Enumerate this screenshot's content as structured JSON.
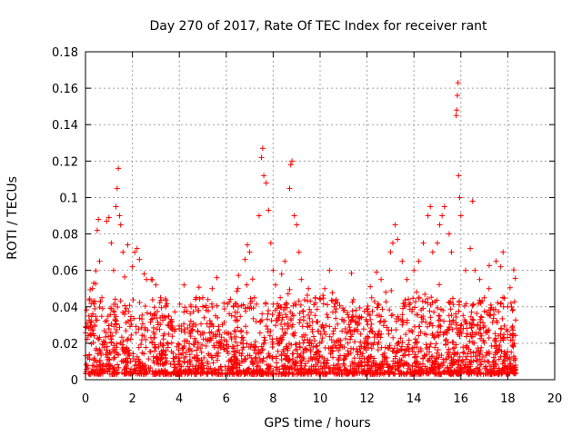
{
  "chart_data": {
    "type": "scatter",
    "title": "Day 270 of 2017, Rate Of TEC Index for receiver rant",
    "xlabel": "GPS time / hours",
    "ylabel": "ROTI / TECUs",
    "xlim": [
      0,
      20
    ],
    "ylim": [
      0,
      0.18
    ],
    "xticks": [
      "0",
      "2",
      "4",
      "6",
      "8",
      "10",
      "12",
      "14",
      "16",
      "18",
      "20"
    ],
    "yticks": [
      "0",
      "0.02",
      "0.04",
      "0.06",
      "0.08",
      "0.1",
      "0.12",
      "0.14",
      "0.16",
      "0.18"
    ],
    "grid": true,
    "marker": "+",
    "color": "#ff0000",
    "series": [
      {
        "points": [
          [
            0.1,
            0.012
          ],
          [
            0.2,
            0.025
          ],
          [
            0.3,
            0.05
          ],
          [
            0.35,
            0.053
          ],
          [
            0.5,
            0.082
          ],
          [
            0.55,
            0.088
          ],
          [
            0.6,
            0.065
          ],
          [
            0.7,
            0.045
          ],
          [
            0.9,
            0.087
          ],
          [
            1.0,
            0.089
          ],
          [
            1.1,
            0.075
          ],
          [
            1.2,
            0.06
          ],
          [
            1.3,
            0.095
          ],
          [
            1.35,
            0.105
          ],
          [
            1.4,
            0.116
          ],
          [
            1.45,
            0.09
          ],
          [
            1.5,
            0.085
          ],
          [
            1.6,
            0.07
          ],
          [
            1.8,
            0.074
          ],
          [
            2.0,
            0.062
          ],
          [
            2.1,
            0.07
          ],
          [
            2.2,
            0.072
          ],
          [
            2.3,
            0.066
          ],
          [
            2.5,
            0.058
          ],
          [
            2.6,
            0.055
          ],
          [
            2.8,
            0.055
          ],
          [
            3.0,
            0.052
          ],
          [
            3.2,
            0.045
          ],
          [
            3.5,
            0.03
          ],
          [
            4.0,
            0.028
          ],
          [
            4.2,
            0.052
          ],
          [
            4.5,
            0.04
          ],
          [
            4.8,
            0.038
          ],
          [
            5.0,
            0.045
          ],
          [
            5.4,
            0.05
          ],
          [
            5.6,
            0.056
          ],
          [
            5.9,
            0.042
          ],
          [
            6.3,
            0.04
          ],
          [
            6.5,
            0.05
          ],
          [
            6.8,
            0.066
          ],
          [
            6.9,
            0.074
          ],
          [
            7.0,
            0.07
          ],
          [
            7.2,
            0.045
          ],
          [
            7.4,
            0.09
          ],
          [
            7.5,
            0.122
          ],
          [
            7.55,
            0.127
          ],
          [
            7.6,
            0.112
          ],
          [
            7.7,
            0.108
          ],
          [
            7.8,
            0.093
          ],
          [
            7.9,
            0.075
          ],
          [
            8.0,
            0.06
          ],
          [
            8.1,
            0.052
          ],
          [
            8.3,
            0.045
          ],
          [
            8.5,
            0.065
          ],
          [
            8.7,
            0.105
          ],
          [
            8.75,
            0.118
          ],
          [
            8.8,
            0.12
          ],
          [
            8.9,
            0.09
          ],
          [
            9.0,
            0.085
          ],
          [
            9.1,
            0.07
          ],
          [
            9.2,
            0.055
          ],
          [
            9.5,
            0.05
          ],
          [
            9.8,
            0.045
          ],
          [
            10.2,
            0.05
          ],
          [
            10.4,
            0.06
          ],
          [
            10.6,
            0.04
          ],
          [
            11.0,
            0.038
          ],
          [
            11.3,
            0.032
          ],
          [
            11.6,
            0.03
          ],
          [
            12.0,
            0.032
          ],
          [
            12.2,
            0.045
          ],
          [
            12.4,
            0.059
          ],
          [
            12.6,
            0.055
          ],
          [
            12.8,
            0.048
          ],
          [
            13.0,
            0.07
          ],
          [
            13.1,
            0.075
          ],
          [
            13.2,
            0.085
          ],
          [
            13.3,
            0.077
          ],
          [
            13.5,
            0.065
          ],
          [
            13.7,
            0.055
          ],
          [
            14.0,
            0.06
          ],
          [
            14.2,
            0.065
          ],
          [
            14.4,
            0.075
          ],
          [
            14.6,
            0.09
          ],
          [
            14.7,
            0.095
          ],
          [
            14.8,
            0.07
          ],
          [
            15.0,
            0.075
          ],
          [
            15.1,
            0.085
          ],
          [
            15.2,
            0.09
          ],
          [
            15.3,
            0.095
          ],
          [
            15.5,
            0.08
          ],
          [
            15.6,
            0.07
          ],
          [
            15.8,
            0.145
          ],
          [
            15.82,
            0.148
          ],
          [
            15.85,
            0.156
          ],
          [
            15.88,
            0.163
          ],
          [
            15.9,
            0.112
          ],
          [
            15.95,
            0.1
          ],
          [
            16.0,
            0.09
          ],
          [
            16.2,
            0.06
          ],
          [
            16.4,
            0.072
          ],
          [
            16.5,
            0.098
          ],
          [
            16.6,
            0.06
          ],
          [
            16.8,
            0.055
          ],
          [
            17.0,
            0.045
          ],
          [
            17.2,
            0.05
          ],
          [
            17.5,
            0.065
          ],
          [
            17.7,
            0.062
          ],
          [
            17.8,
            0.07
          ],
          [
            18.0,
            0.04
          ],
          [
            18.2,
            0.038
          ]
        ]
      }
    ]
  }
}
